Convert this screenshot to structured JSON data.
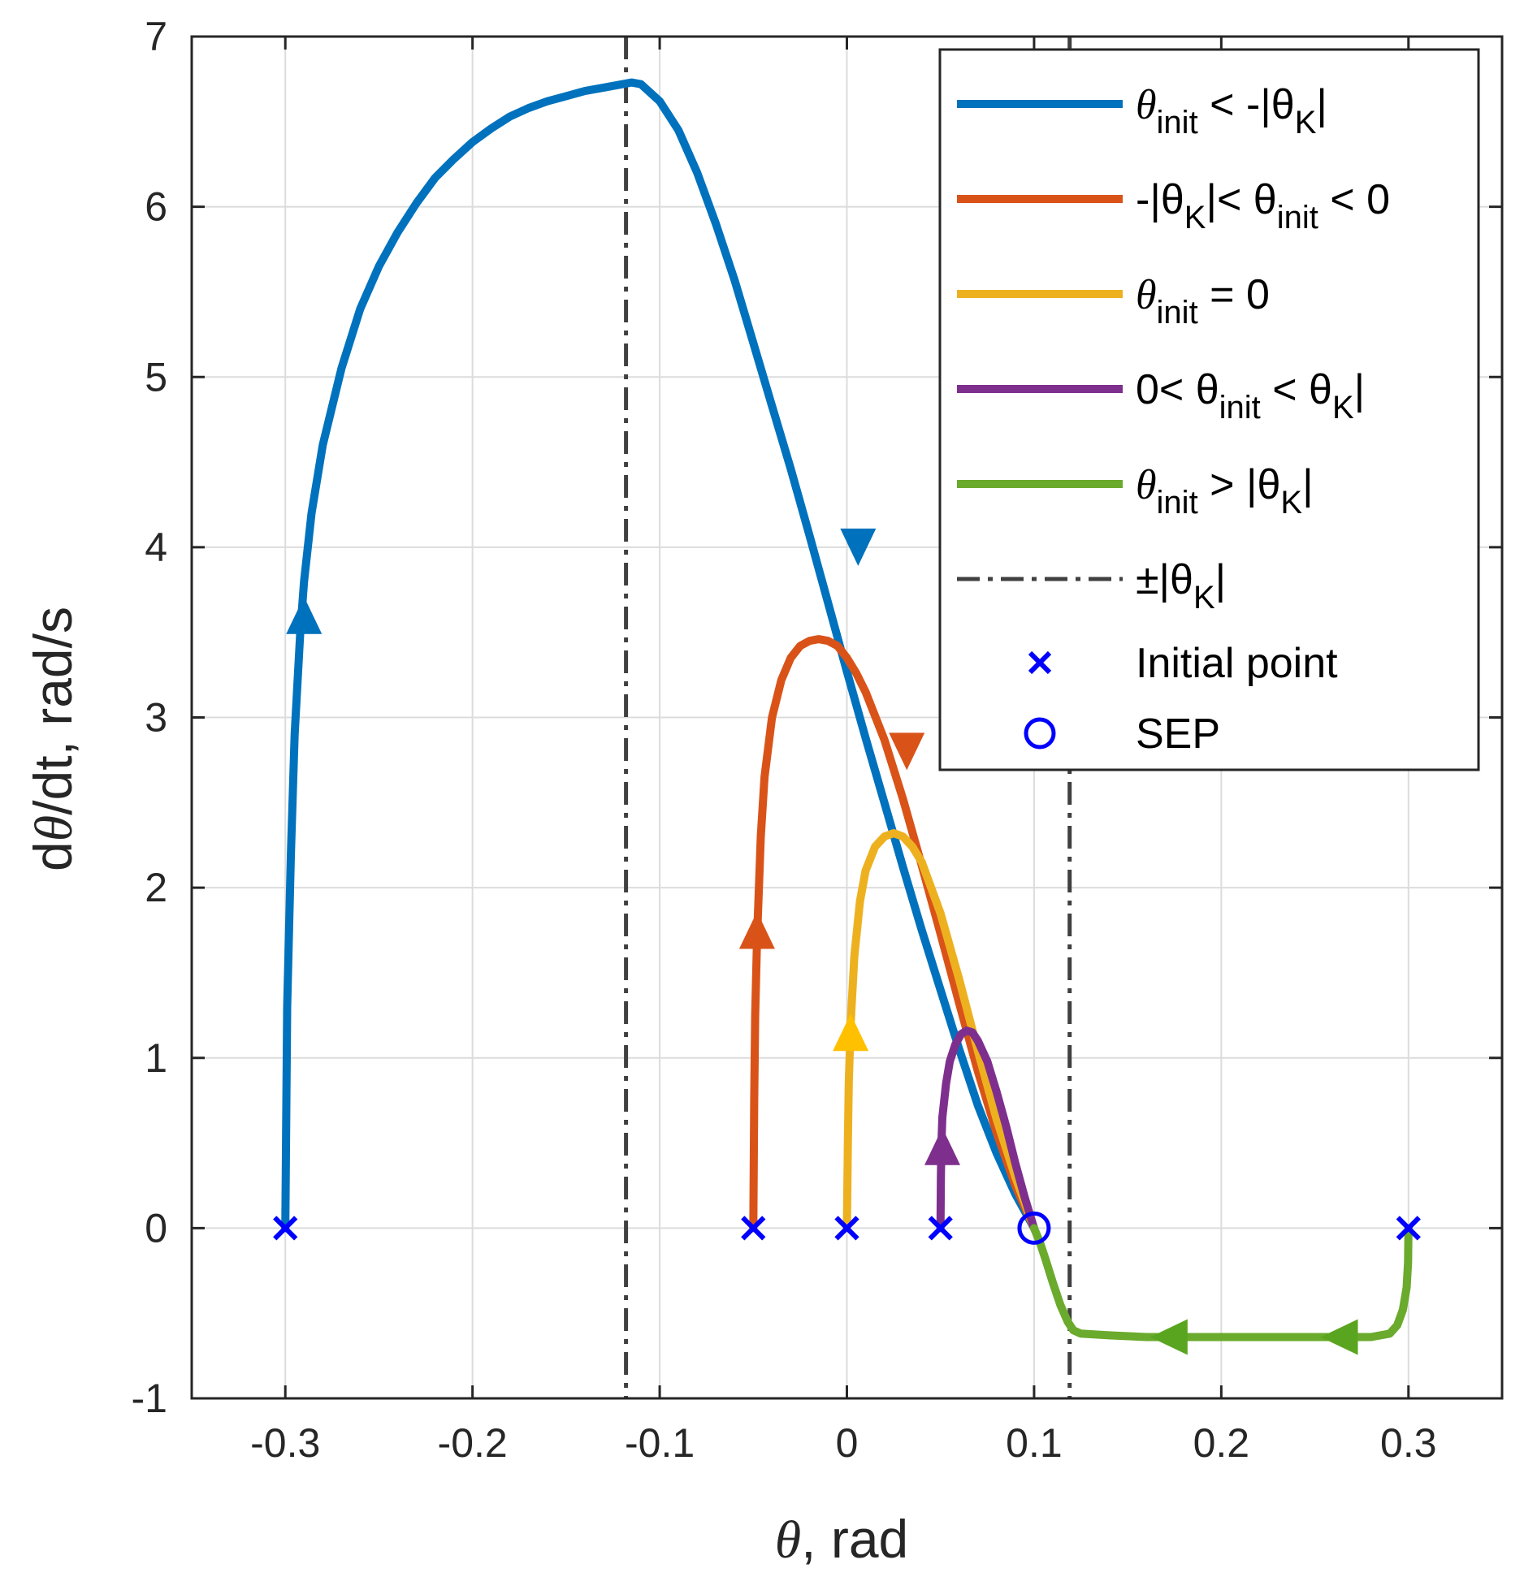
{
  "chart_data": {
    "type": "line",
    "title": "",
    "xlabel": {
      "symbol": "θ",
      "text": ", rad"
    },
    "ylabel": {
      "prefix": "d",
      "symbol": "θ",
      "text": "/dt, rad/s"
    },
    "xlim": [
      -0.35,
      0.35
    ],
    "ylim": [
      -1,
      7
    ],
    "xticks": [
      -0.3,
      -0.2,
      -0.1,
      0,
      0.1,
      0.2,
      0.3
    ],
    "xtick_labels": [
      "-0.3",
      "-0.2",
      "-0.1",
      "0",
      "0.1",
      "0.2",
      "0.3"
    ],
    "yticks": [
      -1,
      0,
      1,
      2,
      3,
      4,
      5,
      6,
      7
    ],
    "ytick_labels": [
      "-1",
      "0",
      "1",
      "2",
      "3",
      "4",
      "5",
      "6",
      "7"
    ],
    "grid": true,
    "legend_position": "top-right",
    "colors": {
      "blue": "#0072BD",
      "orange": "#D95319",
      "yellow": "#EDB120",
      "purple": "#7E2F8E",
      "green": "#6AAA2C",
      "vline": "#404040",
      "marker": "#0000FF"
    },
    "series": [
      {
        "name": "θinit < -|θK|",
        "color": "#0072BD",
        "arrow_color": "#0072BD",
        "x": [
          -0.3,
          -0.299,
          -0.297,
          -0.295,
          -0.292,
          -0.29,
          -0.286,
          -0.28,
          -0.27,
          -0.26,
          -0.25,
          -0.24,
          -0.23,
          -0.22,
          -0.21,
          -0.2,
          -0.19,
          -0.18,
          -0.17,
          -0.16,
          -0.15,
          -0.14,
          -0.13,
          -0.12,
          -0.115,
          -0.11,
          -0.1,
          -0.09,
          -0.08,
          -0.07,
          -0.06,
          -0.05,
          -0.04,
          -0.03,
          -0.02,
          -0.01,
          0,
          0.01,
          0.02,
          0.03,
          0.04,
          0.05,
          0.06,
          0.07,
          0.08,
          0.09,
          0.1
        ],
        "y": [
          0,
          1.3,
          2.2,
          2.9,
          3.5,
          3.8,
          4.2,
          4.6,
          5.05,
          5.4,
          5.65,
          5.85,
          6.02,
          6.17,
          6.28,
          6.38,
          6.46,
          6.53,
          6.58,
          6.62,
          6.65,
          6.68,
          6.7,
          6.72,
          6.73,
          6.72,
          6.62,
          6.45,
          6.2,
          5.9,
          5.57,
          5.2,
          4.83,
          4.46,
          4.07,
          3.67,
          3.27,
          2.88,
          2.5,
          2.12,
          1.75,
          1.4,
          1.05,
          0.72,
          0.44,
          0.2,
          0
        ],
        "arrows": [
          {
            "x": -0.29,
            "y": 3.6,
            "dir": "up"
          },
          {
            "x": 0.006,
            "y": 4.0,
            "dir": "down"
          }
        ]
      },
      {
        "name": "-|θK|< θinit < 0",
        "color": "#D95319",
        "arrow_color": "#D95319",
        "x": [
          -0.05,
          -0.0495,
          -0.049,
          -0.048,
          -0.046,
          -0.044,
          -0.04,
          -0.035,
          -0.03,
          -0.025,
          -0.02,
          -0.015,
          -0.01,
          -0.005,
          0,
          0.005,
          0.01,
          0.02,
          0.03,
          0.04,
          0.05,
          0.06,
          0.07,
          0.08,
          0.09,
          0.1
        ],
        "y": [
          0,
          0.75,
          1.25,
          1.7,
          2.3,
          2.65,
          3.0,
          3.22,
          3.35,
          3.42,
          3.45,
          3.46,
          3.45,
          3.42,
          3.35,
          3.26,
          3.15,
          2.87,
          2.52,
          2.13,
          1.73,
          1.32,
          0.92,
          0.56,
          0.25,
          0
        ],
        "arrows": [
          {
            "x": -0.048,
            "y": 1.75,
            "dir": "up"
          },
          {
            "x": 0.032,
            "y": 2.8,
            "dir": "down"
          }
        ]
      },
      {
        "name": "θinit = 0",
        "color": "#EDB120",
        "arrow_color": "#FFC000",
        "x": [
          0,
          0.0005,
          0.001,
          0.002,
          0.004,
          0.007,
          0.01,
          0.015,
          0.02,
          0.025,
          0.03,
          0.035,
          0.04,
          0.05,
          0.06,
          0.07,
          0.08,
          0.09,
          0.1
        ],
        "y": [
          0,
          0.5,
          0.85,
          1.2,
          1.6,
          1.92,
          2.1,
          2.24,
          2.3,
          2.32,
          2.3,
          2.24,
          2.15,
          1.85,
          1.46,
          1.04,
          0.64,
          0.3,
          0
        ],
        "arrows": [
          {
            "x": 0.002,
            "y": 1.15,
            "dir": "up"
          }
        ]
      },
      {
        "name": "0< θinit < θK|",
        "color": "#7E2F8E",
        "arrow_color": "#7E2F8E",
        "x": [
          0.05,
          0.0502,
          0.0505,
          0.051,
          0.053,
          0.055,
          0.058,
          0.061,
          0.064,
          0.067,
          0.07,
          0.075,
          0.08,
          0.085,
          0.09,
          0.095,
          0.1
        ],
        "y": [
          0,
          0.3,
          0.5,
          0.65,
          0.85,
          0.98,
          1.08,
          1.14,
          1.16,
          1.15,
          1.1,
          0.98,
          0.8,
          0.6,
          0.38,
          0.18,
          0
        ],
        "arrows": [
          {
            "x": 0.051,
            "y": 0.48,
            "dir": "up"
          }
        ]
      },
      {
        "name": "θinit > |θK|",
        "color": "#6AAA2C",
        "arrow_color": "#5AA520",
        "x": [
          0.3,
          0.2998,
          0.299,
          0.297,
          0.294,
          0.29,
          0.28,
          0.26,
          0.24,
          0.2,
          0.18,
          0.16,
          0.14,
          0.125,
          0.121,
          0.118,
          0.114,
          0.11,
          0.106,
          0.103,
          0.1
        ],
        "y": [
          0,
          -0.2,
          -0.35,
          -0.48,
          -0.57,
          -0.62,
          -0.64,
          -0.64,
          -0.64,
          -0.64,
          -0.64,
          -0.64,
          -0.63,
          -0.62,
          -0.6,
          -0.55,
          -0.45,
          -0.32,
          -0.18,
          -0.08,
          0
        ],
        "arrows": [
          {
            "x": 0.263,
            "y": -0.64,
            "dir": "left"
          },
          {
            "x": 0.172,
            "y": -0.64,
            "dir": "left"
          }
        ]
      }
    ],
    "vlines": {
      "name": "±|θK|",
      "color": "#404040",
      "x": [
        -0.118,
        0.119
      ]
    },
    "initial_points": {
      "name": "Initial point",
      "x": [
        -0.3,
        -0.05,
        0,
        0.05,
        0.3
      ],
      "y": [
        0,
        0,
        0,
        0,
        0
      ]
    },
    "sep": {
      "name": "SEP",
      "x": [
        0.1
      ],
      "y": [
        0
      ]
    },
    "legend": [
      {
        "key": "blue",
        "main": "θ",
        "sub": "init",
        "rest": " < -|θ",
        "sub2": "K",
        "tail": "|"
      },
      {
        "key": "orange",
        "pre": "-|θ",
        "sub0": "K",
        "main": "|< θ",
        "sub": "init",
        "rest": " < 0"
      },
      {
        "key": "yellow",
        "main": "θ",
        "sub": "init",
        "rest": " = 0"
      },
      {
        "key": "purple",
        "pre": "0< θ",
        "sub0": "init",
        "main": " < θ",
        "sub": "K",
        "rest": "|"
      },
      {
        "key": "green",
        "main": "θ",
        "sub": "init",
        "rest": " > |θ",
        "sub2": "K",
        "tail": "|"
      },
      {
        "key": "vline",
        "main": "±|θ",
        "sub": "K",
        "rest": "|"
      },
      {
        "key": "marker",
        "text": "Initial point"
      },
      {
        "key": "sep",
        "text": "SEP"
      }
    ]
  }
}
